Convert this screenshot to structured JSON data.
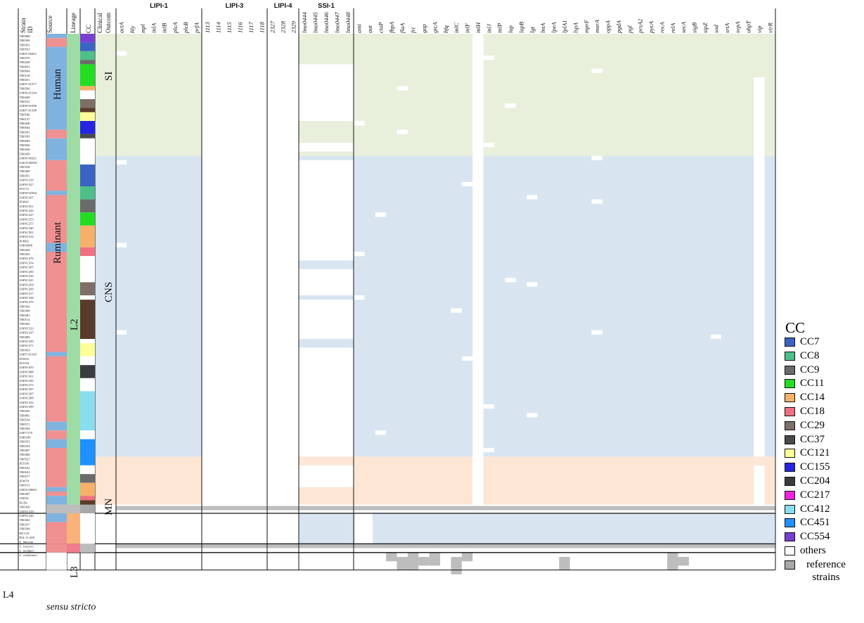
{
  "columns": {
    "strain_id": "Strain ID",
    "source": "Source",
    "lineage": "Lineage",
    "cc": "CC",
    "clinical": "Clinical Outcom"
  },
  "groups": [
    {
      "label": "LIPI-1",
      "genes": [
        "actA",
        "hly",
        "mpl",
        "inlA",
        "inlB",
        "plcA",
        "plcB",
        "prfA"
      ]
    },
    {
      "label": "LIPI-3",
      "genes": [
        "1113",
        "1114",
        "1115",
        "1116",
        "1117",
        "1118"
      ]
    },
    {
      "label": "LIPI-4",
      "genes": [
        "2327",
        "2328",
        "2329"
      ]
    },
    {
      "label": "SSI-1",
      "genes": [
        "lmo0444",
        "lmo0445",
        "lmo0446",
        "lmo0447",
        "lmo0448"
      ]
    },
    {
      "label": "",
      "genes": [
        "ami",
        "aut",
        "ctaP",
        "fbpA",
        "flaA",
        "fri",
        "gap",
        "gtcA",
        "hfq",
        "inlC",
        "inlF",
        "inlH",
        "inlJ",
        "inlP",
        "lap",
        "lapB",
        "lgt",
        "lntA",
        "lpeA",
        "lplA1",
        "lspA",
        "mprF",
        "murA",
        "oppA",
        "pgdA",
        "pgl",
        "prsA2",
        "pycA",
        "recA",
        "relA",
        "secA",
        "sigB",
        "sipZ",
        "sod",
        "srtA",
        "svpA",
        "uhpT",
        "vip",
        "virR"
      ]
    }
  ],
  "source_labels": [
    "Human",
    "Ruminant"
  ],
  "lineage_labels": [
    "L2",
    "L3",
    "L4"
  ],
  "outcome_labels": [
    "SI",
    "CNS",
    "MN"
  ],
  "sensu": "sensu stricto",
  "strains": [
    "TB0088",
    "TB0390",
    "TB0452",
    "TB0561",
    "LM05-00401",
    "TB0570",
    "TB0438",
    "TB0093",
    "TB0094",
    "TB0138",
    "TB0431",
    "LM07-01377",
    "TB0566",
    "LM06-01244",
    "TB0449",
    "TB0531",
    "LM09-01099",
    "LM07-01398",
    "TB0546",
    "TB0137",
    "TB0448",
    "TB0564",
    "TB0361",
    "TB0393",
    "TB0089",
    "TB0560",
    "TB0440",
    "TB0439",
    "LM09-00261",
    "LM10-00506",
    "TB0358",
    "TB0360",
    "TB0451",
    "LMNC319",
    "LMNC327",
    "JF5172",
    "LM09-01004",
    "LMNC307",
    "JF4941",
    "LMNC351",
    "LMNC244",
    "LMNC247",
    "LMNC253",
    "LMNC257",
    "LMNC340",
    "LMNC301",
    "LMNC314",
    "JF4962",
    "LM83088",
    "TB0428",
    "TB0363",
    "LMNC270",
    "LMNC354",
    "LMNC365",
    "LMNC283",
    "LMNC236",
    "LMNC241",
    "LMNC264",
    "LMNC266",
    "LMNC317",
    "LMNC338",
    "LMNC379",
    "TB0392",
    "TB0388",
    "TB0381",
    "TB0512",
    "TB0362",
    "LMNC323",
    "LMNC325",
    "TB0485",
    "LMNC339",
    "LMNC371",
    "TB0453",
    "LM07-01345",
    "JF5052",
    "JF5194",
    "LMNC055",
    "LMNC088",
    "LMNC361",
    "LMNC250",
    "LMNC273",
    "LMNC297",
    "LMNC287",
    "LMNC288",
    "LMNC332",
    "LMNC399",
    "TB0356",
    "TB0481",
    "TB0534",
    "TB0571",
    "TB0394",
    "LM57179",
    "LM6186",
    "TB0353",
    "TB0354",
    "TB0407",
    "TB0408",
    "TB0527",
    "JF5336",
    "TB0522",
    "TB0632",
    "TB0577",
    "JF4978",
    "TB0511",
    "LM05-00065",
    "TB0387",
    "10403s",
    "EGDe",
    "TB0430",
    "LMNC318",
    "LMNC326",
    "TB0402",
    "TB0337",
    "TB0508",
    "HCC23",
    "FSL J1-208",
    "L. innocua",
    "L. ivanovii",
    "L. seeligeri",
    "L. welshimeri"
  ],
  "legend": {
    "title": "CC",
    "items": [
      {
        "label": "CC7",
        "color": "#3a63c4"
      },
      {
        "label": "CC8",
        "color": "#4fbf8a"
      },
      {
        "label": "CC9",
        "color": "#6b6b6b"
      },
      {
        "label": "CC11",
        "color": "#22dd22"
      },
      {
        "label": "CC14",
        "color": "#f7b06a"
      },
      {
        "label": "CC18",
        "color": "#f07080"
      },
      {
        "label": "CC29",
        "color": "#7e6e68"
      },
      {
        "label": "CC37",
        "color": "#4a4a4a"
      },
      {
        "label": "CC121",
        "color": "#ffff99"
      },
      {
        "label": "CC155",
        "color": "#2525e0"
      },
      {
        "label": "CC204",
        "color": "#3a3d40"
      },
      {
        "label": "CC217",
        "color": "#ee22dd"
      },
      {
        "label": "CC412",
        "color": "#88ddee"
      },
      {
        "label": "CC451",
        "color": "#1e90ff"
      },
      {
        "label": "CC554",
        "color": "#7b3fcf"
      },
      {
        "label": "others",
        "color": "#ffffff"
      },
      {
        "label": "reference strains",
        "color": "#a8a8a8"
      }
    ]
  },
  "colors": {
    "si_bg": "#e8f0dc",
    "cns_bg": "#d8e5f1",
    "mn_bg": "#fde6d4",
    "reference": "#bdbdbd",
    "human": "#80b2e0",
    "ruminant": "#f09090",
    "l2": "#9fdca5",
    "l3": "#f9b27a",
    "l4": "#f07c8c"
  }
}
